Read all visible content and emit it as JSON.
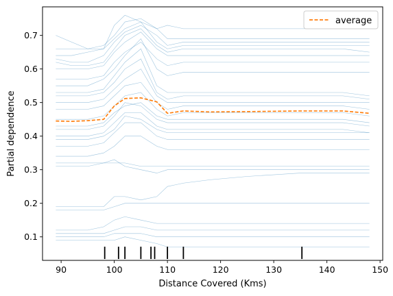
{
  "chart_data": {
    "type": "line",
    "xlabel": "Distance Covered (Kms)",
    "ylabel": "Partial dependence",
    "xlim": [
      86.5,
      150.5
    ],
    "ylim": [
      0.03,
      0.785
    ],
    "xticks": [
      90,
      100,
      110,
      120,
      130,
      140,
      150
    ],
    "yticks": [
      0.1,
      0.2,
      0.3,
      0.4,
      0.5,
      0.6,
      0.7
    ],
    "grid": false,
    "legend": {
      "position": "top-right",
      "entries": [
        "average"
      ]
    },
    "colors": {
      "ice": "#1f77b4",
      "average": "#ff7f0e",
      "rug": "#000000"
    },
    "x": [
      89,
      92,
      95,
      98,
      100,
      102,
      105,
      108,
      110,
      113,
      118,
      125,
      135,
      143,
      148
    ],
    "series": [
      {
        "name": "average",
        "values": [
          0.445,
          0.444,
          0.446,
          0.45,
          0.49,
          0.512,
          0.514,
          0.502,
          0.468,
          0.475,
          0.472,
          0.473,
          0.475,
          0.475,
          0.468
        ]
      }
    ],
    "ice_lines": [
      [
        0.7,
        0.68,
        0.66,
        0.66,
        0.73,
        0.76,
        0.74,
        0.72,
        0.73,
        0.72,
        0.72,
        0.72,
        0.72,
        0.72,
        0.72
      ],
      [
        0.66,
        0.66,
        0.66,
        0.67,
        0.7,
        0.74,
        0.75,
        0.72,
        0.69,
        0.69,
        0.69,
        0.69,
        0.69,
        0.69,
        0.69
      ],
      [
        0.63,
        0.62,
        0.62,
        0.64,
        0.68,
        0.71,
        0.73,
        0.7,
        0.67,
        0.68,
        0.68,
        0.68,
        0.68,
        0.68,
        0.68
      ],
      [
        0.64,
        0.64,
        0.65,
        0.66,
        0.69,
        0.72,
        0.74,
        0.68,
        0.66,
        0.67,
        0.67,
        0.67,
        0.67,
        0.67,
        0.67
      ],
      [
        0.62,
        0.61,
        0.61,
        0.62,
        0.66,
        0.7,
        0.72,
        0.67,
        0.65,
        0.66,
        0.66,
        0.66,
        0.66,
        0.66,
        0.65
      ],
      [
        0.6,
        0.6,
        0.6,
        0.61,
        0.65,
        0.68,
        0.71,
        0.66,
        0.64,
        0.64,
        0.64,
        0.64,
        0.64,
        0.64,
        0.64
      ],
      [
        0.57,
        0.57,
        0.57,
        0.58,
        0.62,
        0.65,
        0.68,
        0.63,
        0.61,
        0.62,
        0.62,
        0.62,
        0.62,
        0.62,
        0.62
      ],
      [
        0.55,
        0.55,
        0.55,
        0.57,
        0.6,
        0.64,
        0.69,
        0.6,
        0.58,
        0.59,
        0.59,
        0.59,
        0.59,
        0.59,
        0.59
      ],
      [
        0.53,
        0.53,
        0.53,
        0.54,
        0.58,
        0.62,
        0.66,
        0.55,
        0.53,
        0.53,
        0.53,
        0.53,
        0.53,
        0.53,
        0.52
      ],
      [
        0.52,
        0.52,
        0.52,
        0.53,
        0.56,
        0.6,
        0.63,
        0.53,
        0.51,
        0.52,
        0.52,
        0.52,
        0.52,
        0.52,
        0.51
      ],
      [
        0.5,
        0.5,
        0.5,
        0.51,
        0.54,
        0.57,
        0.6,
        0.52,
        0.5,
        0.5,
        0.5,
        0.5,
        0.5,
        0.5,
        0.5
      ],
      [
        0.48,
        0.48,
        0.48,
        0.49,
        0.52,
        0.55,
        0.56,
        0.5,
        0.48,
        0.49,
        0.49,
        0.49,
        0.49,
        0.49,
        0.48
      ],
      [
        0.45,
        0.45,
        0.45,
        0.46,
        0.49,
        0.52,
        0.53,
        0.48,
        0.46,
        0.47,
        0.47,
        0.47,
        0.47,
        0.47,
        0.46
      ],
      [
        0.43,
        0.43,
        0.43,
        0.44,
        0.47,
        0.49,
        0.5,
        0.46,
        0.45,
        0.45,
        0.45,
        0.45,
        0.45,
        0.45,
        0.44
      ],
      [
        0.42,
        0.42,
        0.42,
        0.43,
        0.46,
        0.5,
        0.49,
        0.45,
        0.44,
        0.44,
        0.44,
        0.44,
        0.44,
        0.44,
        0.43
      ],
      [
        0.4,
        0.4,
        0.4,
        0.41,
        0.44,
        0.47,
        0.47,
        0.43,
        0.42,
        0.42,
        0.42,
        0.42,
        0.42,
        0.42,
        0.41
      ],
      [
        0.39,
        0.39,
        0.39,
        0.4,
        0.42,
        0.46,
        0.45,
        0.42,
        0.41,
        0.41,
        0.41,
        0.41,
        0.41,
        0.41,
        0.41
      ],
      [
        0.37,
        0.37,
        0.37,
        0.38,
        0.41,
        0.44,
        0.44,
        0.4,
        0.39,
        0.39,
        0.39,
        0.39,
        0.39,
        0.39,
        0.39
      ],
      [
        0.34,
        0.34,
        0.34,
        0.35,
        0.37,
        0.4,
        0.4,
        0.37,
        0.36,
        0.36,
        0.36,
        0.36,
        0.36,
        0.36,
        0.36
      ],
      [
        0.31,
        0.31,
        0.31,
        0.32,
        0.33,
        0.31,
        0.3,
        0.29,
        0.3,
        0.3,
        0.3,
        0.3,
        0.3,
        0.3,
        0.3
      ],
      [
        0.32,
        0.32,
        0.32,
        0.32,
        0.32,
        0.32,
        0.31,
        0.31,
        0.31,
        0.31,
        0.31,
        0.31,
        0.31,
        0.31,
        0.31
      ],
      [
        0.19,
        0.19,
        0.19,
        0.19,
        0.22,
        0.22,
        0.21,
        0.22,
        0.25,
        0.26,
        0.27,
        0.28,
        0.29,
        0.29,
        0.29
      ],
      [
        0.18,
        0.18,
        0.18,
        0.18,
        0.19,
        0.2,
        0.2,
        0.2,
        0.2,
        0.2,
        0.2,
        0.2,
        0.2,
        0.2,
        0.2
      ],
      [
        0.12,
        0.12,
        0.12,
        0.13,
        0.15,
        0.16,
        0.15,
        0.14,
        0.14,
        0.14,
        0.14,
        0.14,
        0.14,
        0.14,
        0.14
      ],
      [
        0.11,
        0.11,
        0.11,
        0.11,
        0.12,
        0.13,
        0.13,
        0.12,
        0.12,
        0.12,
        0.12,
        0.12,
        0.12,
        0.12,
        0.12
      ],
      [
        0.1,
        0.1,
        0.1,
        0.1,
        0.11,
        0.11,
        0.11,
        0.1,
        0.1,
        0.1,
        0.1,
        0.1,
        0.1,
        0.1,
        0.1
      ],
      [
        0.09,
        0.09,
        0.09,
        0.09,
        0.09,
        0.1,
        0.09,
        0.08,
        0.07,
        0.07,
        0.07,
        0.07,
        0.07,
        0.07,
        0.07
      ]
    ],
    "rug": [
      98.2,
      100.8,
      102.0,
      105.0,
      106.9,
      107.6,
      110.0,
      113.0,
      135.3
    ]
  }
}
